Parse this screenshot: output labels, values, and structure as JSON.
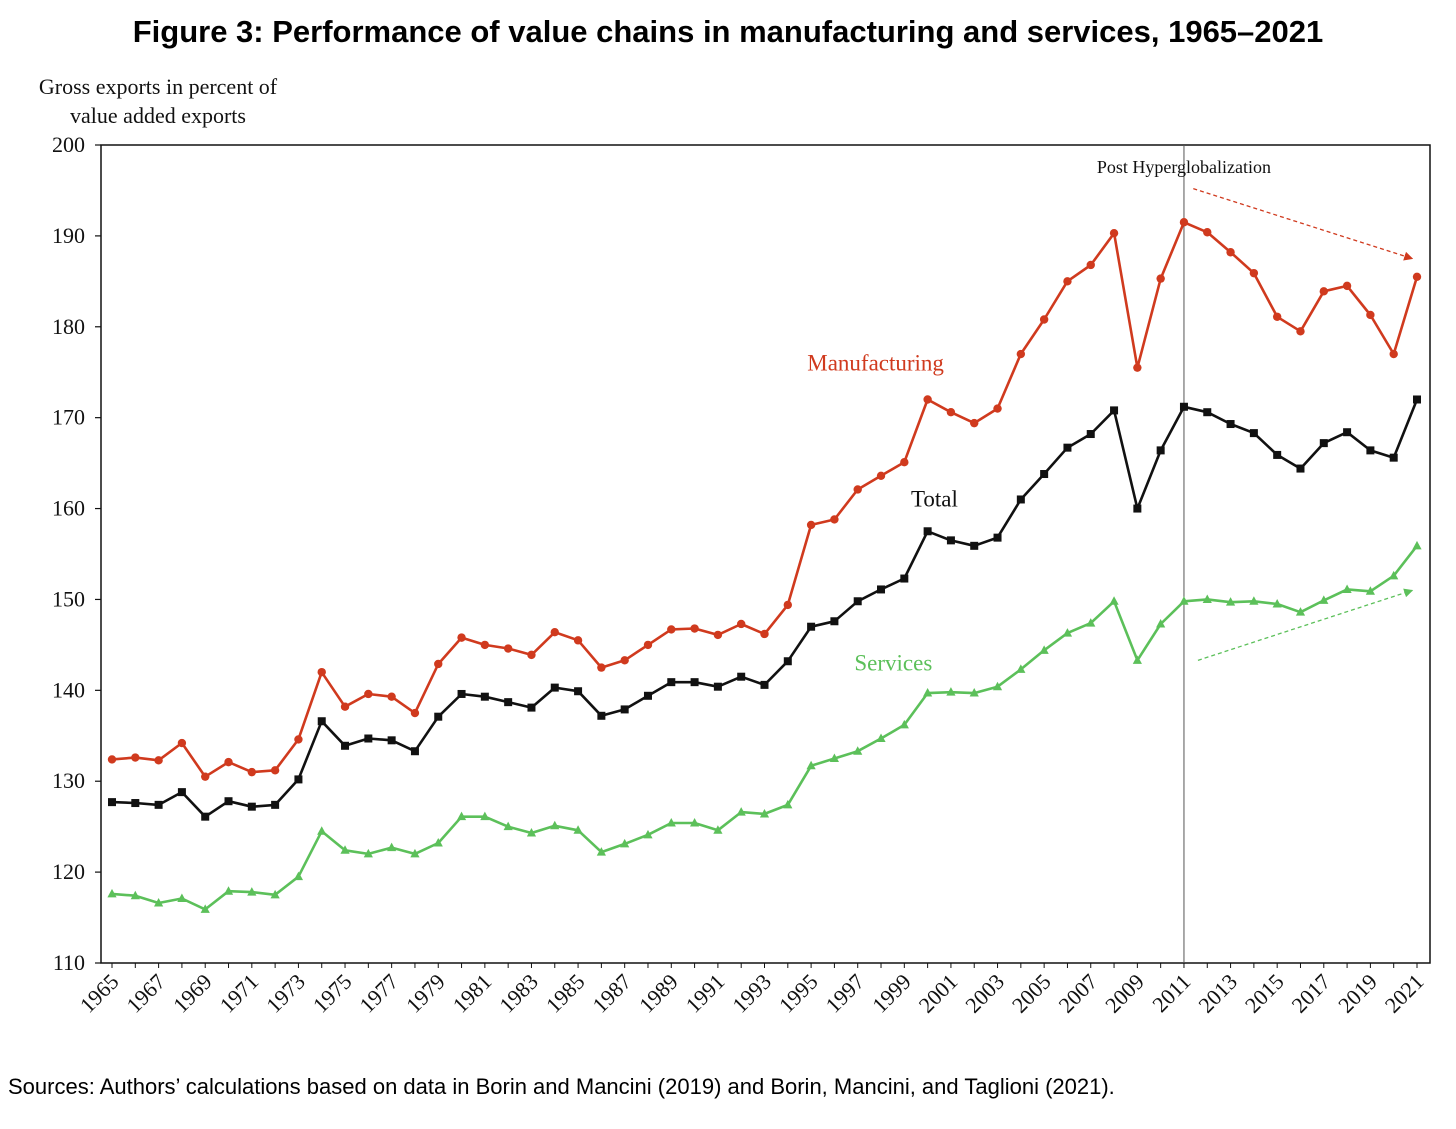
{
  "figure": {
    "title": "Figure 3: Performance of value chains in manufacturing and services, 1965–2021",
    "source": "Sources: Authors’ calculations based on data in Borin and Mancini (2019) and Borin, Mancini, and Taglioni (2021)."
  },
  "chart_data": {
    "type": "line",
    "title": "Figure 3: Performance of value chains in manufacturing and services, 1965–2021",
    "ylabel_lines": [
      "Gross exports in percent of",
      "value added exports"
    ],
    "xlabel": "",
    "ylim": [
      110,
      200
    ],
    "yticks": [
      110,
      120,
      130,
      140,
      150,
      160,
      170,
      180,
      190,
      200
    ],
    "xlim": [
      1965,
      2021
    ],
    "xtick_labels": [
      "1965",
      "1967",
      "1969",
      "1971",
      "1973",
      "1975",
      "1977",
      "1979",
      "1981",
      "1983",
      "1985",
      "1987",
      "1989",
      "1991",
      "1993",
      "1995",
      "1997",
      "1999",
      "2001",
      "2003",
      "2005",
      "2007",
      "2009",
      "2011",
      "2013",
      "2015",
      "2017",
      "2019",
      "2021"
    ],
    "grid": false,
    "legend": "inline labels",
    "x": [
      1965,
      1966,
      1967,
      1968,
      1969,
      1970,
      1971,
      1972,
      1973,
      1974,
      1975,
      1976,
      1977,
      1978,
      1979,
      1980,
      1981,
      1982,
      1983,
      1984,
      1985,
      1986,
      1987,
      1988,
      1989,
      1990,
      1991,
      1992,
      1993,
      1994,
      1995,
      1996,
      1997,
      1998,
      1999,
      2000,
      2001,
      2002,
      2003,
      2004,
      2005,
      2006,
      2007,
      2008,
      2009,
      2010,
      2011,
      2012,
      2013,
      2014,
      2015,
      2016,
      2017,
      2018,
      2019,
      2020,
      2021
    ],
    "series": [
      {
        "name": "Manufacturing",
        "color": "#d03a1e",
        "marker": "circle",
        "values": [
          132.4,
          132.6,
          132.3,
          134.2,
          130.5,
          132.1,
          131.0,
          131.2,
          134.6,
          142.0,
          138.2,
          139.6,
          139.3,
          137.5,
          142.9,
          145.8,
          145.0,
          144.6,
          143.9,
          146.4,
          145.5,
          142.5,
          143.3,
          145.0,
          146.7,
          146.8,
          146.1,
          147.3,
          146.2,
          149.4,
          158.2,
          158.8,
          162.1,
          163.6,
          165.1,
          172.0,
          170.6,
          169.4,
          171.0,
          177.0,
          180.8,
          185.0,
          186.8,
          190.3,
          175.5,
          185.3,
          191.5,
          190.4,
          188.2,
          185.9,
          181.1,
          179.5,
          183.9,
          184.5,
          181.3,
          177.0,
          185.5
        ]
      },
      {
        "name": "Total",
        "color": "#111111",
        "marker": "square",
        "values": [
          127.7,
          127.6,
          127.4,
          128.8,
          126.1,
          127.8,
          127.2,
          127.4,
          130.2,
          136.6,
          133.9,
          134.7,
          134.5,
          133.3,
          137.1,
          139.6,
          139.3,
          138.7,
          138.1,
          140.3,
          139.9,
          137.2,
          137.9,
          139.4,
          140.9,
          140.9,
          140.4,
          141.5,
          140.6,
          143.2,
          147.0,
          147.6,
          149.8,
          151.1,
          152.3,
          157.5,
          156.5,
          155.9,
          156.8,
          161.0,
          163.8,
          166.7,
          168.2,
          170.8,
          160.0,
          166.4,
          171.2,
          170.6,
          169.3,
          168.3,
          165.9,
          164.4,
          167.2,
          168.4,
          166.4,
          165.6,
          172.0
        ]
      },
      {
        "name": "Services",
        "color": "#5cc05a",
        "marker": "triangle",
        "values": [
          117.6,
          117.4,
          116.6,
          117.1,
          115.9,
          117.9,
          117.8,
          117.5,
          119.5,
          124.5,
          122.4,
          122.0,
          122.7,
          122.0,
          123.2,
          126.1,
          126.1,
          125.0,
          124.3,
          125.1,
          124.6,
          122.2,
          123.1,
          124.1,
          125.4,
          125.4,
          124.6,
          126.6,
          126.4,
          127.4,
          131.7,
          132.5,
          133.3,
          134.7,
          136.2,
          139.7,
          139.8,
          139.7,
          140.4,
          142.3,
          144.4,
          146.3,
          147.4,
          149.8,
          143.3,
          147.3,
          149.8,
          150.0,
          149.7,
          149.8,
          149.5,
          148.6,
          149.9,
          151.1,
          150.9,
          152.6,
          155.9
        ]
      }
    ],
    "annotations": {
      "vline_year": 2011,
      "vline_label": "Post Hyperglobalization",
      "series_labels": [
        "Manufacturing",
        "Total",
        "Services"
      ],
      "trend_arrows": [
        {
          "series": "Manufacturing",
          "from": [
            2011.4,
            195.2
          ],
          "to": [
            2020.8,
            187.5
          ],
          "color": "#d03a1e",
          "dashed": true
        },
        {
          "series": "Services",
          "from": [
            2011.6,
            143.3
          ],
          "to": [
            2020.8,
            151.0
          ],
          "color": "#5cc05a",
          "dashed": true
        }
      ]
    }
  }
}
